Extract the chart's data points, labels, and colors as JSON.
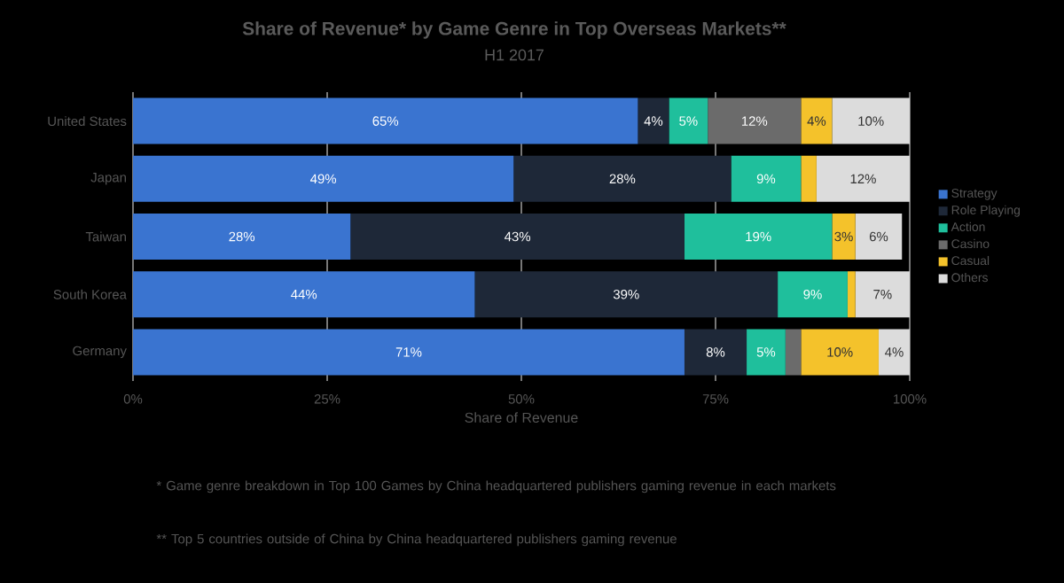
{
  "chart_data": {
    "type": "bar",
    "orientation": "horizontal",
    "stacked": true,
    "title": "Share of Revenue* by Game Genre in Top Overseas Markets**",
    "subtitle": "H1 2017",
    "xlabel": "Share of Revenue",
    "categories": [
      "United States",
      "Japan",
      "Taiwan",
      "South Korea",
      "Germany"
    ],
    "series": [
      {
        "name": "Strategy",
        "color": "#3a74d0",
        "values": [
          65,
          49,
          28,
          44,
          71
        ],
        "value_labels": [
          "65%",
          "49%",
          "28%",
          "44%",
          "71%"
        ]
      },
      {
        "name": "Role Playing",
        "color": "#1e2838",
        "values": [
          4,
          28,
          43,
          39,
          8
        ],
        "value_labels": [
          "4%",
          "28%",
          "43%",
          "39%",
          "8%"
        ]
      },
      {
        "name": "Action",
        "color": "#1fbf9c",
        "values": [
          5,
          9,
          19,
          9,
          5
        ],
        "value_labels": [
          "5%",
          "9%",
          "19%",
          "9%",
          "5%"
        ]
      },
      {
        "name": "Casino",
        "color": "#6b6b6b",
        "values": [
          12,
          0,
          0,
          0,
          2
        ],
        "value_labels": [
          "12%",
          null,
          null,
          null,
          null
        ]
      },
      {
        "name": "Casual",
        "color": "#f4c22b",
        "values": [
          4,
          2,
          3,
          1,
          10
        ],
        "value_labels": [
          "4%",
          null,
          "3%",
          null,
          "10%"
        ]
      },
      {
        "name": "Others",
        "color": "#dcdcdc",
        "values": [
          10,
          12,
          6,
          7,
          4
        ],
        "value_labels": [
          "10%",
          "12%",
          "6%",
          "7%",
          "4%"
        ]
      }
    ],
    "xlim": [
      0,
      100
    ],
    "xticks": [
      {
        "value": 0,
        "label": "0%"
      },
      {
        "value": 25,
        "label": "25%"
      },
      {
        "value": 50,
        "label": "50%"
      },
      {
        "value": 75,
        "label": "75%"
      },
      {
        "value": 100,
        "label": "100%"
      }
    ],
    "grid": "x",
    "legend": "right",
    "annotations": [
      "* Game genre breakdown in Top 100 Games by China headquartered publishers gaming revenue in each markets",
      "** Top 5 countries outside of China by China headquartered publishers gaming revenue"
    ]
  }
}
